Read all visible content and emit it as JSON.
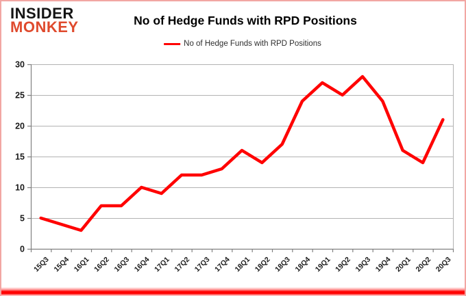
{
  "logo": {
    "line1": "INSIDER",
    "line2": "MONKEY"
  },
  "header": {
    "title": "No of Hedge Funds with RPD Positions"
  },
  "legend": {
    "label": "No of Hedge Funds with RPD Positions"
  },
  "colors": {
    "series_red": "#ff0000",
    "logo_red": "#df4a2d",
    "border_pink": "#f2a6a3",
    "gridline_gray": "#b2b2b2",
    "axis_gray": "#808080"
  },
  "chart_data": {
    "type": "line",
    "title": "No of Hedge Funds with RPD Positions",
    "categories": [
      "15Q3",
      "15Q4",
      "16Q1",
      "16Q2",
      "16Q3",
      "16Q4",
      "17Q1",
      "17Q2",
      "17Q3",
      "17Q4",
      "18Q1",
      "18Q2",
      "18Q3",
      "18Q4",
      "19Q1",
      "19Q2",
      "19Q3",
      "19Q4",
      "20Q1",
      "20Q2",
      "20Q3"
    ],
    "series": [
      {
        "name": "No of Hedge Funds with RPD Positions",
        "color": "#ff0000",
        "values": [
          5,
          4,
          3,
          7,
          7,
          10,
          9,
          12,
          12,
          13,
          16,
          14,
          17,
          24,
          27,
          25,
          28,
          24,
          16,
          14,
          21
        ]
      }
    ],
    "xlabel": "",
    "ylabel": "",
    "ylim": [
      0,
      30
    ],
    "yticks": [
      0,
      5,
      10,
      15,
      20,
      25,
      30
    ],
    "grid": true,
    "legend_position": "top-center"
  }
}
